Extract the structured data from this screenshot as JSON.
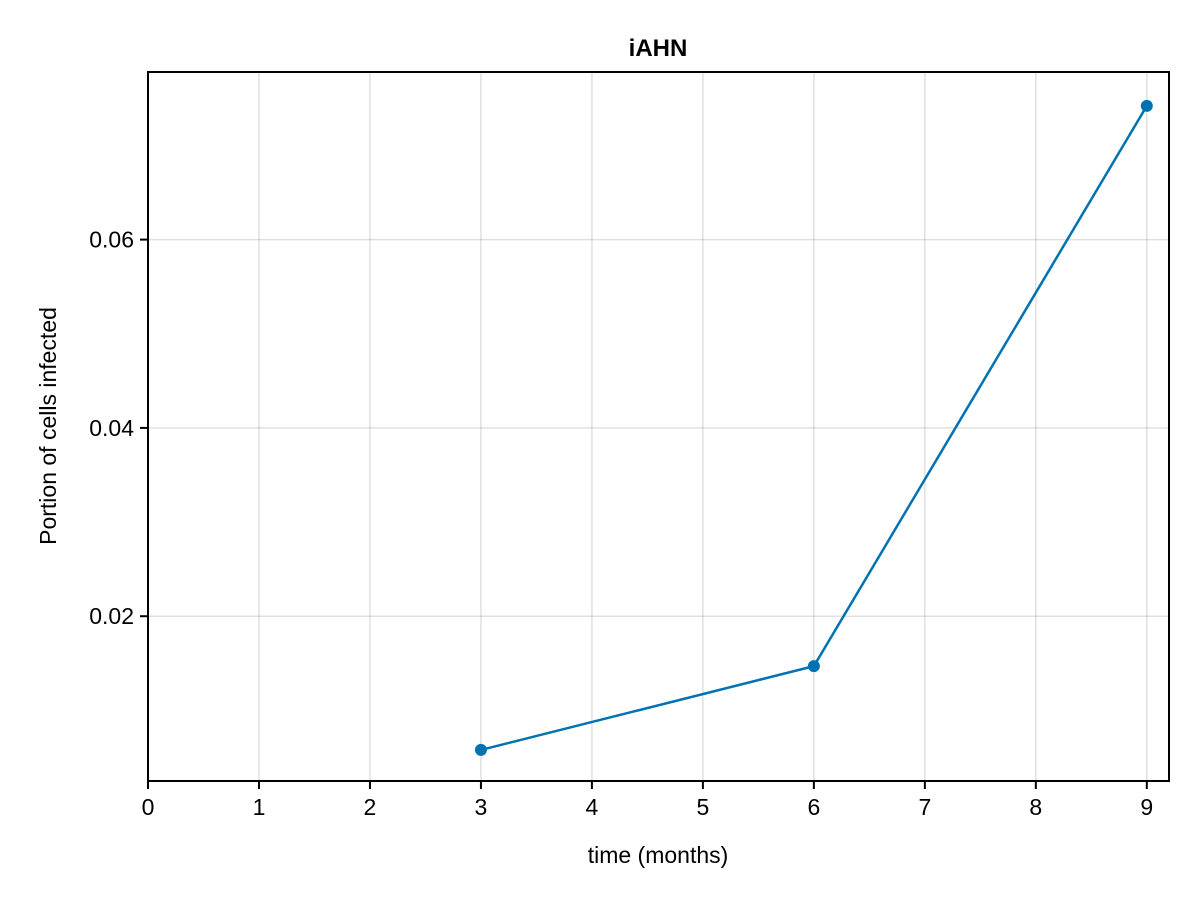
{
  "chart_data": {
    "type": "line",
    "title": "iAHN",
    "xlabel": "time (months)",
    "ylabel": "Portion of cells infected",
    "xlim": [
      0,
      9.2
    ],
    "ylim": [
      0.0025,
      0.0778
    ],
    "x_ticks": [
      0,
      1,
      2,
      3,
      4,
      5,
      6,
      7,
      8,
      9
    ],
    "x_tick_labels": [
      "0",
      "1",
      "2",
      "3",
      "4",
      "5",
      "6",
      "7",
      "8",
      "9"
    ],
    "y_ticks": [
      0.02,
      0.04,
      0.06
    ],
    "y_tick_labels": [
      "0.02",
      "0.04",
      "0.06"
    ],
    "grid": true,
    "series": [
      {
        "x": [
          3,
          6,
          9
        ],
        "y": [
          0.0058,
          0.0147,
          0.0742
        ],
        "color": "#0072b2",
        "markers": true
      }
    ]
  }
}
